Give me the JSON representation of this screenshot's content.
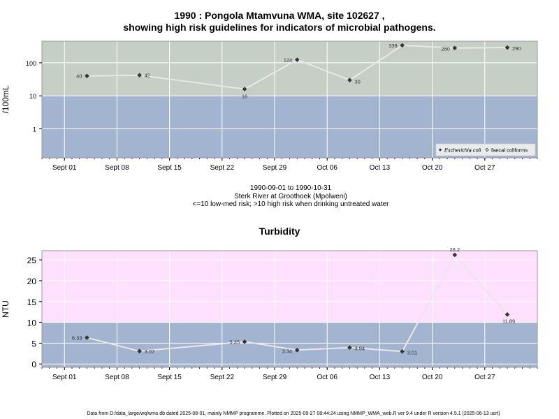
{
  "chart_data": [
    {
      "type": "line",
      "title": "1990 : Pongola Mtamvuna WMA, site 102627 ,",
      "subtitle": "showing high risk guidelines for indicators of microbial pathogens.",
      "ylabel": "/100mL",
      "y_scale": "log",
      "y_ticks": [
        "1",
        "10",
        "100"
      ],
      "x_ticks": [
        "Sept 01",
        "Sept 08",
        "Sept 15",
        "Sept 22",
        "Sept 29",
        "Oct 06",
        "Oct 13",
        "Oct 20",
        "Oct 27"
      ],
      "x_tick_dates": [
        "1990-09-01",
        "1990-09-08",
        "1990-09-15",
        "1990-09-22",
        "1990-09-29",
        "1990-10-06",
        "1990-10-13",
        "1990-10-20",
        "1990-10-27"
      ],
      "xlim": [
        "1990-08-29",
        "1990-11-03"
      ],
      "grid": true,
      "bands": [
        {
          "from": 0.1,
          "to": 10,
          "color": "#a2b4cf"
        },
        {
          "from": 10,
          "to": 450,
          "color": "#c6cfc6"
        }
      ],
      "legend_position": "bottom-right",
      "legend": [
        {
          "label": "Escherichia coli",
          "marker": "filled-diamond"
        },
        {
          "label": "faecal coliforms",
          "marker": "open-diamond"
        }
      ],
      "series": [
        {
          "name": "Escherichia coli",
          "x": [
            "1990-09-04",
            "1990-09-11",
            "1990-09-25",
            "1990-10-02",
            "1990-10-09",
            "1990-10-16",
            "1990-10-23",
            "1990-10-30"
          ],
          "values": [
            40,
            42,
            16,
            124,
            30,
            338,
            280,
            290
          ],
          "labels": [
            "40",
            "42",
            "16",
            "124",
            "30",
            "338",
            "280",
            "290"
          ]
        }
      ]
    },
    {
      "type": "line",
      "title": "Turbidity",
      "ylabel": "NTU",
      "y_ticks": [
        "0",
        "5",
        "10",
        "15",
        "20",
        "25"
      ],
      "ylim": [
        -0.8,
        27.2
      ],
      "x_ticks": [
        "Sept 01",
        "Sept 08",
        "Sept 15",
        "Sept 22",
        "Sept 29",
        "Oct 06",
        "Oct 13",
        "Oct 20",
        "Oct 27"
      ],
      "x_tick_dates": [
        "1990-09-01",
        "1990-09-08",
        "1990-09-15",
        "1990-09-22",
        "1990-09-29",
        "1990-10-06",
        "1990-10-13",
        "1990-10-20",
        "1990-10-27"
      ],
      "xlim": [
        "1990-08-29",
        "1990-11-03"
      ],
      "grid": true,
      "bands": [
        {
          "from": -0.8,
          "to": 10,
          "color": "#a2b4cf"
        },
        {
          "from": 10,
          "to": 27.2,
          "color": "#ffe0ff"
        }
      ],
      "series": [
        {
          "name": "",
          "x": [
            "1990-09-04",
            "1990-09-11",
            "1990-09-25",
            "1990-10-02",
            "1990-10-09",
            "1990-10-16",
            "1990-10-23",
            "1990-10-30"
          ],
          "values": [
            6.33,
            3.07,
            5.35,
            3.34,
            3.94,
            3.01,
            26.2,
            11.89
          ],
          "labels": [
            "6.33",
            "3.07",
            "5.35",
            "3.34",
            "3.94",
            "3.01",
            "26.2",
            "11.89"
          ]
        }
      ]
    }
  ],
  "info": {
    "date_range": "1990-09-01 to 1990-10-31",
    "location": "Sterk River at Groothoek (Mpolweni)",
    "risk_note": "<=10 low-med risk; >10 high risk when drinking untreated water"
  },
  "footer": "Data from D:/data_large/wq/wms.db dated 2025-08-01, mainly NMMP programme. Plotted on 2025-09-27 08:44:24 using NMMP_WMA_web.R ver 9.4 under R version 4.5.1 (2025-06-13 ucrt)"
}
